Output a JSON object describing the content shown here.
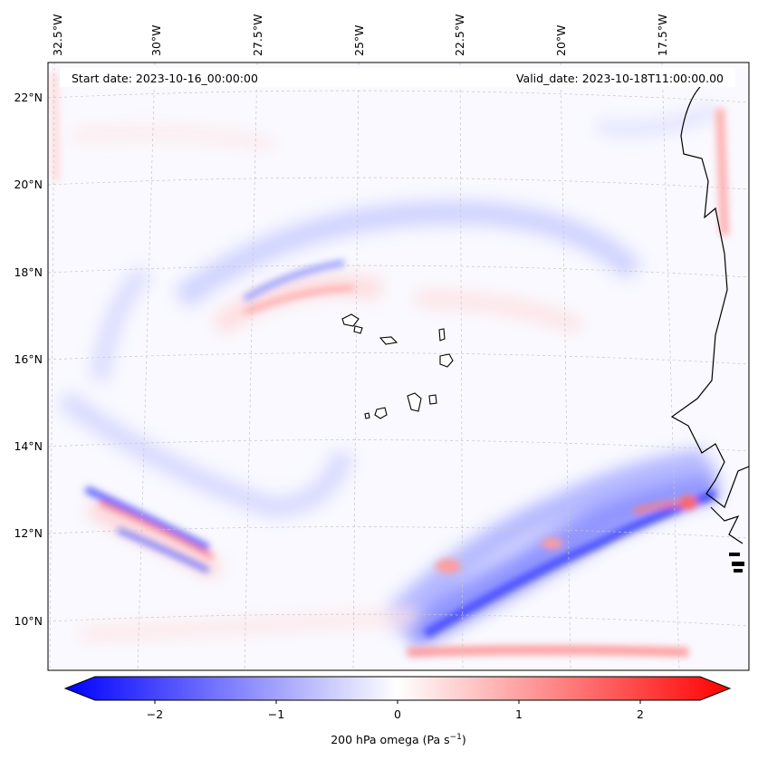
{
  "header": {
    "start_date": "Start date: 2023-10-16_00:00:00",
    "valid_date": "Valid_date: 2023-10-18T11:00:00.00"
  },
  "map": {
    "lon_labels": [
      "32.5°W",
      "30°W",
      "27.5°W",
      "25°W",
      "22.5°W",
      "20°W",
      "17.5°W"
    ],
    "lat_labels": [
      "22°N",
      "20°N",
      "18°N",
      "16°N",
      "14°N",
      "12°N",
      "10°N"
    ],
    "field": "200 hPa omega",
    "colors": {
      "negative": "#0000ff",
      "positive": "#ff0000",
      "zero": "#ffffff",
      "coast": "#000000"
    }
  },
  "colorbar": {
    "ticks": [
      "−2",
      "−1",
      "0",
      "1",
      "2"
    ],
    "label": "200 hPa omega (Pa s",
    "label_sup": "−1",
    "label_close": ")"
  }
}
